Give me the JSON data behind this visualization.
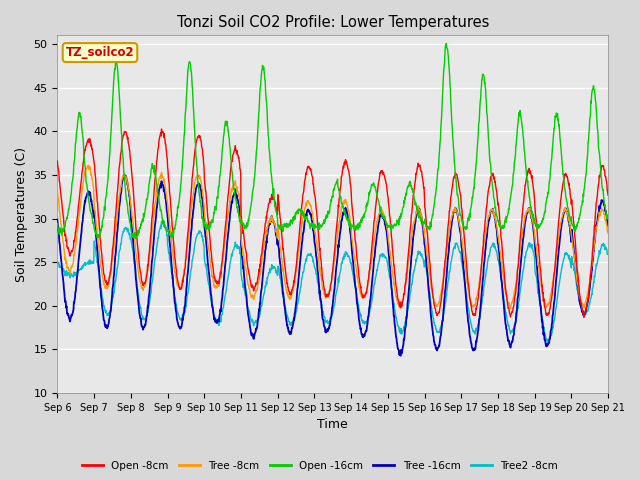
{
  "title": "Tonzi Soil CO2 Profile: Lower Temperatures",
  "xlabel": "Time",
  "ylabel": "Soil Temperatures (C)",
  "ylim": [
    10,
    51
  ],
  "yticks": [
    10,
    15,
    20,
    25,
    30,
    35,
    40,
    45,
    50
  ],
  "annotation": "TZ_soilco2",
  "annotation_color": "#cc0000",
  "annotation_bg": "#ffffcc",
  "annotation_border": "#cc9900",
  "colors": {
    "open_8cm": "#ff0000",
    "tree_8cm": "#ff9900",
    "open_16cm": "#00cc00",
    "tree_16cm": "#0000bb",
    "tree2_8cm": "#00bbcc"
  },
  "legend": [
    "Open -8cm",
    "Tree -8cm",
    "Open -16cm",
    "Tree -16cm",
    "Tree2 -8cm"
  ],
  "start_day": 6,
  "end_day": 21,
  "n_days": 15,
  "points_per_day": 96,
  "open8_peaks": [
    39,
    40,
    40,
    39.5,
    38,
    32.5,
    36,
    36.5,
    35.5,
    36,
    35,
    35,
    35.5,
    35,
    36
  ],
  "open8_troughs": [
    26,
    22.5,
    22.5,
    22,
    22.5,
    22,
    21.5,
    21,
    21,
    20,
    19,
    19,
    19,
    19,
    19
  ],
  "tree8_peaks": [
    36,
    35,
    35,
    35,
    34,
    30,
    32,
    32,
    31,
    31,
    31,
    31,
    31,
    31,
    31
  ],
  "tree8_troughs": [
    24,
    22,
    22,
    22,
    22,
    21,
    21,
    21,
    21,
    20,
    20,
    20,
    20,
    20,
    20
  ],
  "open16_peaks": [
    42,
    48,
    36,
    48,
    41,
    47.5,
    31,
    34,
    34,
    34,
    50,
    46.5,
    42,
    42,
    45
  ],
  "open16_troughs": [
    28.5,
    28,
    28,
    28,
    29,
    29,
    29,
    29,
    29,
    29,
    29,
    29,
    29,
    29,
    29
  ],
  "tree16_peaks": [
    33,
    35,
    34,
    34,
    33,
    30,
    31,
    31,
    30.5,
    31,
    31,
    31,
    31,
    31,
    32
  ],
  "tree16_troughs": [
    18.5,
    17.5,
    17.5,
    17.5,
    18,
    16.5,
    17,
    17,
    16.5,
    14.5,
    15,
    15,
    15.5,
    15.5,
    19
  ],
  "tree28_peaks": [
    25,
    29,
    29.5,
    28.5,
    27,
    24.5,
    26,
    26,
    26,
    26,
    27,
    27,
    27,
    26,
    27
  ],
  "tree28_troughs": [
    23.5,
    19,
    18.5,
    18.5,
    18,
    18,
    18,
    18,
    18,
    17,
    17,
    17,
    17,
    16,
    19
  ]
}
